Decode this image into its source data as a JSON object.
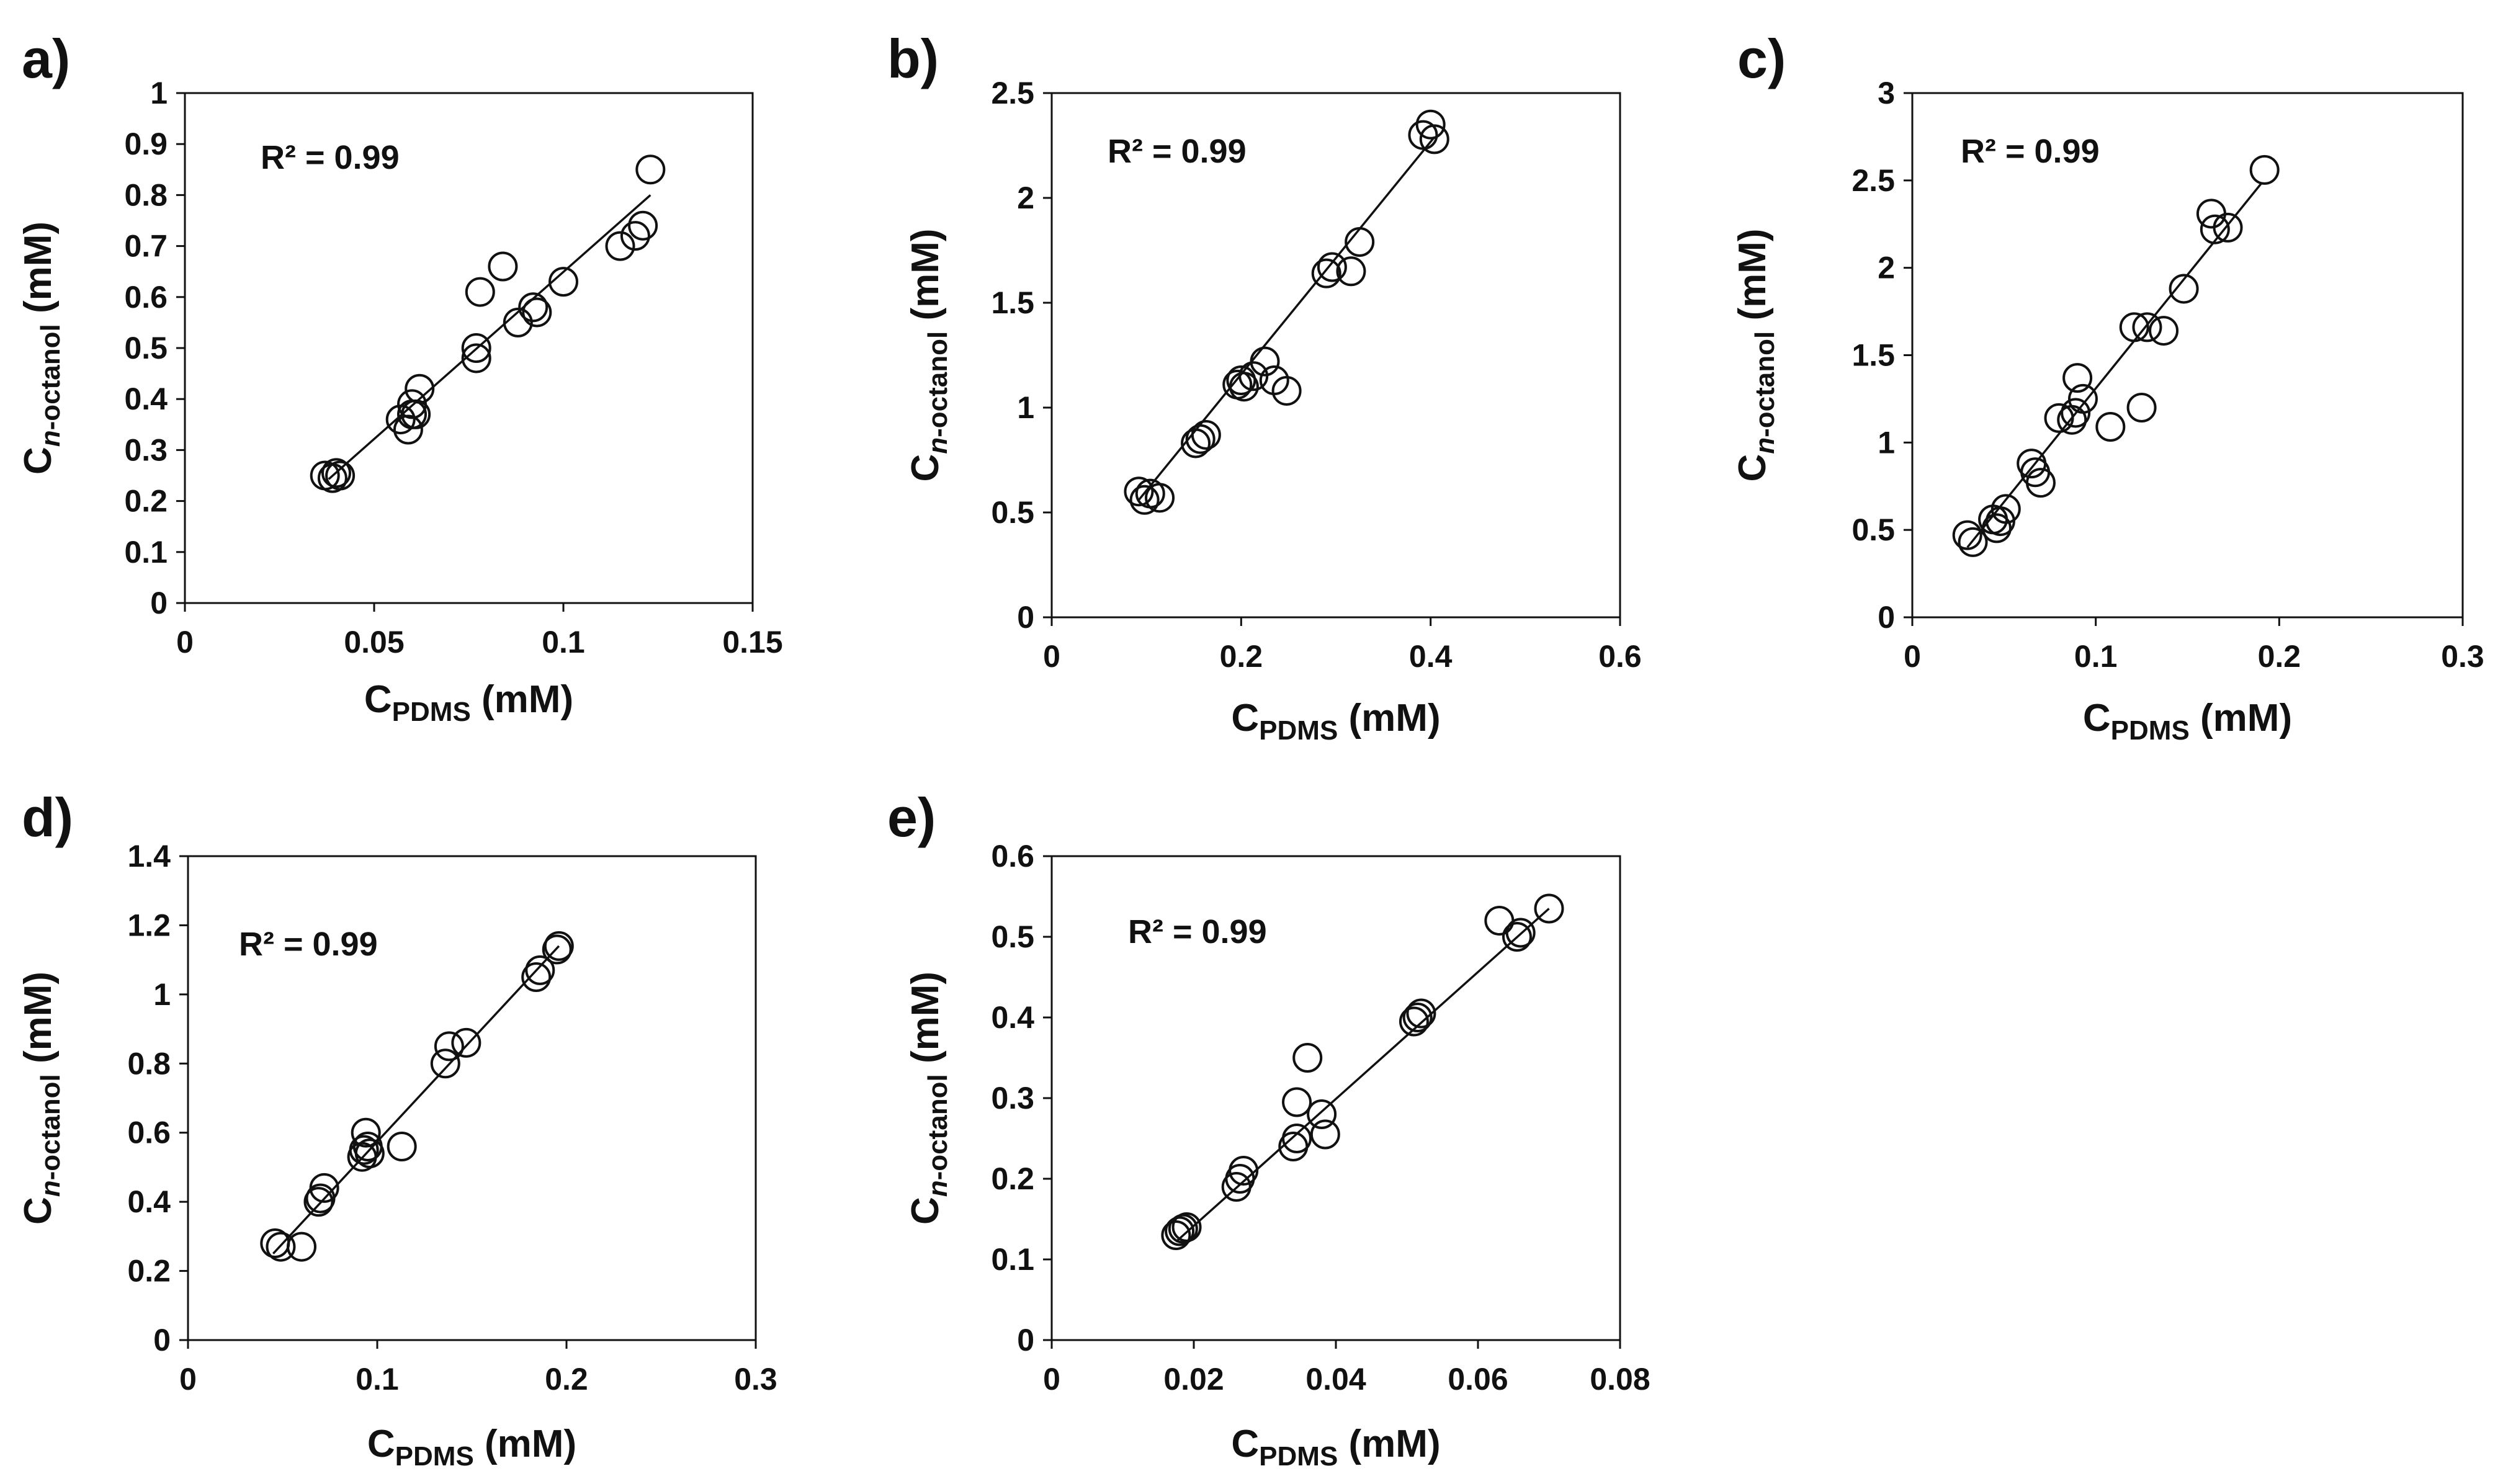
{
  "figure": {
    "background": "#ffffff",
    "marker_color": "#111111",
    "line_color": "#111111"
  },
  "chart_data": [
    {
      "type": "scatter",
      "panel_label": "a)",
      "ylabel_main": "C",
      "ylabel_sub_italic": "n",
      "ylabel_sub_rest": "-octanol",
      "ylabel_unit": " (mM)",
      "xlabel_main": "C",
      "xlabel_sub": "PDMS",
      "xlabel_unit": " (mM)",
      "r2_text": "R² = 0.99",
      "xlim": [
        0,
        0.15
      ],
      "ylim": [
        0,
        1
      ],
      "x_ticks": [
        0,
        0.05,
        0.1,
        0.15
      ],
      "x_tick_labels": [
        "0",
        "0.05",
        "0.1",
        "0.15"
      ],
      "y_ticks": [
        0,
        0.1,
        0.2,
        0.3,
        0.4,
        0.5,
        0.6,
        0.7,
        0.8,
        0.9,
        1
      ],
      "y_tick_labels": [
        "0",
        "0.1",
        "0.2",
        "0.3",
        "0.4",
        "0.5",
        "0.6",
        "0.7",
        "0.8",
        "0.9",
        "1"
      ],
      "points": [
        [
          0.037,
          0.25
        ],
        [
          0.039,
          0.245
        ],
        [
          0.04,
          0.255
        ],
        [
          0.041,
          0.25
        ],
        [
          0.057,
          0.36
        ],
        [
          0.059,
          0.34
        ],
        [
          0.06,
          0.37
        ],
        [
          0.06,
          0.39
        ],
        [
          0.061,
          0.37
        ],
        [
          0.062,
          0.42
        ],
        [
          0.077,
          0.48
        ],
        [
          0.077,
          0.5
        ],
        [
          0.078,
          0.61
        ],
        [
          0.084,
          0.66
        ],
        [
          0.088,
          0.55
        ],
        [
          0.092,
          0.58
        ],
        [
          0.093,
          0.57
        ],
        [
          0.1,
          0.63
        ],
        [
          0.115,
          0.7
        ],
        [
          0.119,
          0.72
        ],
        [
          0.121,
          0.74
        ],
        [
          0.123,
          0.85
        ]
      ],
      "fit_line": {
        "x": [
          0.038,
          0.123
        ],
        "y": [
          0.243,
          0.8
        ]
      }
    },
    {
      "type": "scatter",
      "panel_label": "b)",
      "ylabel_main": "C",
      "ylabel_sub_italic": "n",
      "ylabel_sub_rest": "-octanol",
      "ylabel_unit": " (mM)",
      "xlabel_main": "C",
      "xlabel_sub": "PDMS",
      "xlabel_unit": " (mM)",
      "r2_text": "R² = 0.99",
      "xlim": [
        0,
        0.6
      ],
      "ylim": [
        0,
        2.5
      ],
      "x_ticks": [
        0,
        0.2,
        0.4,
        0.6
      ],
      "x_tick_labels": [
        "0",
        "0.2",
        "0.4",
        "0.6"
      ],
      "y_ticks": [
        0,
        0.5,
        1,
        1.5,
        2,
        2.5
      ],
      "y_tick_labels": [
        "0",
        "0.5",
        "1",
        "1.5",
        "2",
        "2.5"
      ],
      "points": [
        [
          0.092,
          0.6
        ],
        [
          0.098,
          0.56
        ],
        [
          0.104,
          0.59
        ],
        [
          0.114,
          0.57
        ],
        [
          0.152,
          0.83
        ],
        [
          0.157,
          0.85
        ],
        [
          0.163,
          0.87
        ],
        [
          0.196,
          1.11
        ],
        [
          0.2,
          1.13
        ],
        [
          0.203,
          1.1
        ],
        [
          0.213,
          1.15
        ],
        [
          0.225,
          1.22
        ],
        [
          0.235,
          1.13
        ],
        [
          0.248,
          1.08
        ],
        [
          0.29,
          1.64
        ],
        [
          0.296,
          1.67
        ],
        [
          0.316,
          1.65
        ],
        [
          0.325,
          1.79
        ],
        [
          0.392,
          2.3
        ],
        [
          0.4,
          2.35
        ],
        [
          0.404,
          2.28
        ]
      ],
      "fit_line": {
        "x": [
          0.092,
          0.404
        ],
        "y": [
          0.56,
          2.29
        ]
      }
    },
    {
      "type": "scatter",
      "panel_label": "c)",
      "ylabel_main": "C",
      "ylabel_sub_italic": "n",
      "ylabel_sub_rest": "-octanol",
      "ylabel_unit": " (mM)",
      "xlabel_main": "C",
      "xlabel_sub": "PDMS",
      "xlabel_unit": " (mM)",
      "r2_text": "R² = 0.99",
      "xlim": [
        0,
        0.3
      ],
      "ylim": [
        0,
        3
      ],
      "x_ticks": [
        0,
        0.1,
        0.2,
        0.3
      ],
      "x_tick_labels": [
        "0",
        "0.1",
        "0.2",
        "0.3"
      ],
      "y_ticks": [
        0,
        0.5,
        1,
        1.5,
        2,
        2.5,
        3
      ],
      "y_tick_labels": [
        "0",
        "0.5",
        "1",
        "1.5",
        "2",
        "2.5",
        "3"
      ],
      "points": [
        [
          0.03,
          0.47
        ],
        [
          0.033,
          0.43
        ],
        [
          0.044,
          0.56
        ],
        [
          0.046,
          0.51
        ],
        [
          0.048,
          0.55
        ],
        [
          0.051,
          0.62
        ],
        [
          0.065,
          0.88
        ],
        [
          0.067,
          0.83
        ],
        [
          0.07,
          0.77
        ],
        [
          0.08,
          1.14
        ],
        [
          0.087,
          1.13
        ],
        [
          0.089,
          1.17
        ],
        [
          0.09,
          1.37
        ],
        [
          0.093,
          1.25
        ],
        [
          0.108,
          1.09
        ],
        [
          0.121,
          1.66
        ],
        [
          0.125,
          1.2
        ],
        [
          0.128,
          1.66
        ],
        [
          0.137,
          1.64
        ],
        [
          0.148,
          1.88
        ],
        [
          0.163,
          2.31
        ],
        [
          0.165,
          2.22
        ],
        [
          0.172,
          2.23
        ],
        [
          0.192,
          2.56
        ]
      ],
      "fit_line": {
        "x": [
          0.03,
          0.19
        ],
        "y": [
          0.4,
          2.48
        ]
      }
    },
    {
      "type": "scatter",
      "panel_label": "d)",
      "ylabel_main": "C",
      "ylabel_sub_italic": "n",
      "ylabel_sub_rest": "-octanol",
      "ylabel_unit": " (mM)",
      "xlabel_main": "C",
      "xlabel_sub": "PDMS",
      "xlabel_unit": " (mM)",
      "r2_text": "R² = 0.99",
      "xlim": [
        0,
        0.3
      ],
      "ylim": [
        0,
        1.4
      ],
      "x_ticks": [
        0,
        0.1,
        0.2,
        0.3
      ],
      "x_tick_labels": [
        "0",
        "0.1",
        "0.2",
        "0.3"
      ],
      "y_ticks": [
        0,
        0.2,
        0.4,
        0.6,
        0.8,
        1,
        1.2,
        1.4
      ],
      "y_tick_labels": [
        "0",
        "0.2",
        "0.4",
        "0.6",
        "0.8",
        "1",
        "1.2",
        "1.4"
      ],
      "points": [
        [
          0.046,
          0.28
        ],
        [
          0.049,
          0.27
        ],
        [
          0.06,
          0.27
        ],
        [
          0.069,
          0.4
        ],
        [
          0.07,
          0.41
        ],
        [
          0.072,
          0.44
        ],
        [
          0.092,
          0.53
        ],
        [
          0.093,
          0.55
        ],
        [
          0.094,
          0.6
        ],
        [
          0.095,
          0.56
        ],
        [
          0.096,
          0.54
        ],
        [
          0.113,
          0.56
        ],
        [
          0.136,
          0.8
        ],
        [
          0.138,
          0.85
        ],
        [
          0.147,
          0.86
        ],
        [
          0.184,
          1.05
        ],
        [
          0.186,
          1.07
        ],
        [
          0.195,
          1.13
        ],
        [
          0.196,
          1.14
        ]
      ],
      "fit_line": {
        "x": [
          0.045,
          0.196
        ],
        "y": [
          0.25,
          1.14
        ]
      }
    },
    {
      "type": "scatter",
      "panel_label": "e)",
      "ylabel_main": "C",
      "ylabel_sub_italic": "n",
      "ylabel_sub_rest": "-octanol",
      "ylabel_unit": " (mM)",
      "xlabel_main": "C",
      "xlabel_sub": "PDMS",
      "xlabel_unit": " (mM)",
      "r2_text": "R² = 0.99",
      "xlim": [
        0,
        0.08
      ],
      "ylim": [
        0,
        0.6
      ],
      "x_ticks": [
        0,
        0.02,
        0.04,
        0.06,
        0.08
      ],
      "x_tick_labels": [
        "0",
        "0.02",
        "0.04",
        "0.06",
        "0.08"
      ],
      "y_ticks": [
        0,
        0.1,
        0.2,
        0.3,
        0.4,
        0.5,
        0.6
      ],
      "y_tick_labels": [
        "0",
        "0.1",
        "0.2",
        "0.3",
        "0.4",
        "0.5",
        "0.6"
      ],
      "points": [
        [
          0.0175,
          0.13
        ],
        [
          0.018,
          0.135
        ],
        [
          0.0185,
          0.138
        ],
        [
          0.019,
          0.14
        ],
        [
          0.026,
          0.19
        ],
        [
          0.0265,
          0.2
        ],
        [
          0.027,
          0.21
        ],
        [
          0.034,
          0.24
        ],
        [
          0.0345,
          0.25
        ],
        [
          0.0345,
          0.295
        ],
        [
          0.036,
          0.35
        ],
        [
          0.038,
          0.28
        ],
        [
          0.0385,
          0.255
        ],
        [
          0.051,
          0.395
        ],
        [
          0.0515,
          0.4
        ],
        [
          0.052,
          0.405
        ],
        [
          0.063,
          0.52
        ],
        [
          0.0655,
          0.5
        ],
        [
          0.066,
          0.505
        ],
        [
          0.07,
          0.535
        ]
      ],
      "fit_line": {
        "x": [
          0.0175,
          0.07
        ],
        "y": [
          0.122,
          0.535
        ]
      }
    }
  ]
}
